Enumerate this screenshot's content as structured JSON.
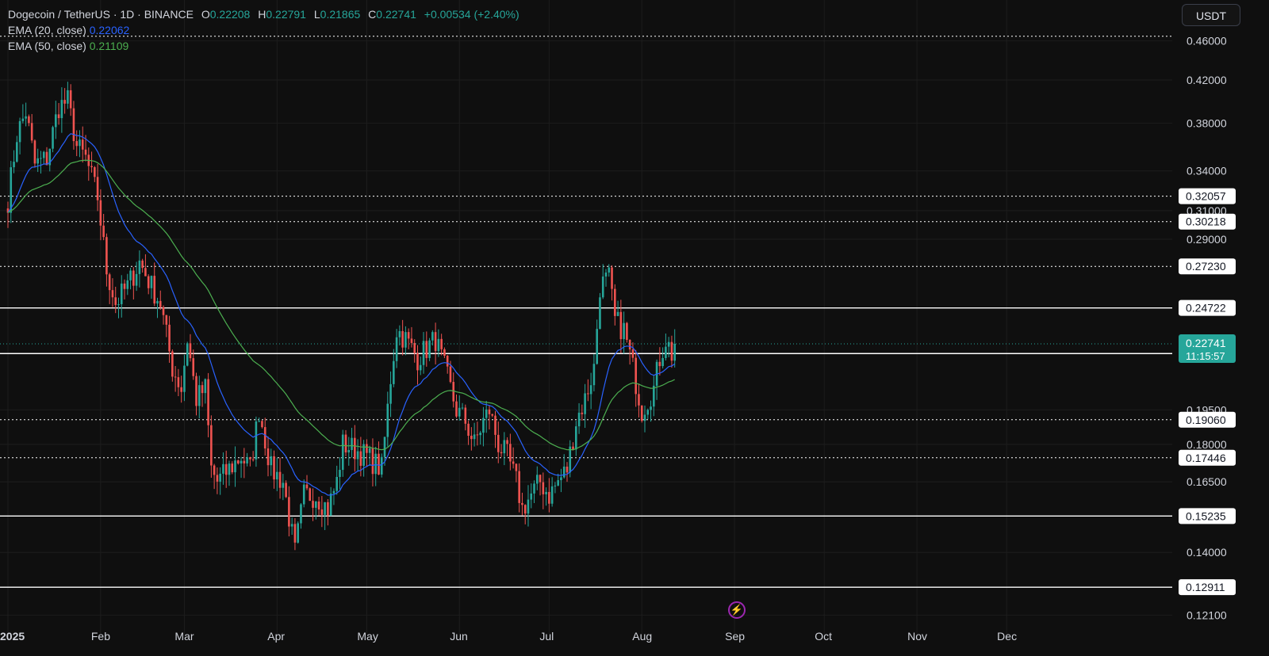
{
  "header": {
    "symbol": "Dogecoin / TetherUS · 1D · BINANCE",
    "o_label": "O",
    "o_value": "0.22208",
    "h_label": "H",
    "h_value": "0.22791",
    "l_label": "L",
    "l_value": "0.21865",
    "c_label": "C",
    "c_value": "0.22741",
    "change": "+0.00534 (+2.40%)"
  },
  "indicators": [
    {
      "label": "EMA (20, close)",
      "value": "0.22062",
      "color": "#2962ff"
    },
    {
      "label": "EMA (50, close)",
      "value": "0.21109",
      "color": "#4caf50"
    }
  ],
  "currency_button": "USDT",
  "colors": {
    "up": "#26a69a",
    "down": "#ef5350",
    "ema20": "#2962ff",
    "ema50": "#4caf50",
    "price_badge": "#26a69a",
    "background": "#0f0f0f"
  },
  "chart_data": {
    "type": "candlestick",
    "x_axis_labels": [
      "2025",
      "Feb",
      "Mar",
      "Apr",
      "May",
      "Jun",
      "Jul",
      "Aug",
      "Sep",
      "Oct",
      "Nov",
      "Dec"
    ],
    "x_axis_dates": [
      "2025-01-01",
      "2025-02-01",
      "2025-03-01",
      "2025-04-01",
      "2025-05-01",
      "2025-06-01",
      "2025-07-01",
      "2025-08-01",
      "2025-09-01",
      "2025-10-01",
      "2025-11-01",
      "2025-12-01"
    ],
    "y_axis_ticks": [
      "0.46000",
      "0.42000",
      "0.38000",
      "0.34000",
      "0.31000",
      "0.29000",
      "0.19500",
      "0.18000",
      "0.16500",
      "0.14000",
      "0.12100"
    ],
    "y_axis_tick_values": [
      0.46,
      0.42,
      0.38,
      0.34,
      0.31,
      0.29,
      0.195,
      0.18,
      0.165,
      0.14,
      0.121
    ],
    "ylim": [
      0.118,
      0.47
    ],
    "scale": "log",
    "horizontal_levels": [
      {
        "label": "0.32057",
        "value": 0.32057,
        "style": "dotted"
      },
      {
        "label": "0.30218",
        "value": 0.30218,
        "style": "dotted"
      },
      {
        "label": "0.27230",
        "value": 0.2723,
        "style": "dotted"
      },
      {
        "label": "0.24722",
        "value": 0.24722,
        "style": "solid"
      },
      {
        "label": "0.22232",
        "value": 0.22232,
        "style": "solid"
      },
      {
        "label": "0.19060",
        "value": 0.1906,
        "style": "dotted"
      },
      {
        "label": "0.17446",
        "value": 0.17446,
        "style": "dotted"
      },
      {
        "label": "0.15235",
        "value": 0.15235,
        "style": "solid"
      },
      {
        "label": "0.12911",
        "value": 0.12911,
        "style": "solid"
      }
    ],
    "top_level": {
      "value": 0.465,
      "style": "dotted"
    },
    "current_price": {
      "label": "0.22741",
      "value": 0.22741,
      "countdown": "11:15:57"
    },
    "close_anchors": [
      [
        "2025-01-01",
        0.318
      ],
      [
        "2025-01-04",
        0.37
      ],
      [
        "2025-01-07",
        0.39
      ],
      [
        "2025-01-10",
        0.345
      ],
      [
        "2025-01-14",
        0.35
      ],
      [
        "2025-01-18",
        0.395
      ],
      [
        "2025-01-21",
        0.4
      ],
      [
        "2025-01-24",
        0.36
      ],
      [
        "2025-01-27",
        0.35
      ],
      [
        "2025-01-31",
        0.32
      ],
      [
        "2025-02-03",
        0.27
      ],
      [
        "2025-02-06",
        0.25
      ],
      [
        "2025-02-10",
        0.26
      ],
      [
        "2025-02-14",
        0.275
      ],
      [
        "2025-02-18",
        0.26
      ],
      [
        "2025-02-21",
        0.25
      ],
      [
        "2025-02-25",
        0.215
      ],
      [
        "2025-02-28",
        0.205
      ],
      [
        "2025-03-02",
        0.23
      ],
      [
        "2025-03-05",
        0.2
      ],
      [
        "2025-03-08",
        0.205
      ],
      [
        "2025-03-10",
        0.17
      ],
      [
        "2025-03-12",
        0.165
      ],
      [
        "2025-03-16",
        0.17
      ],
      [
        "2025-03-20",
        0.175
      ],
      [
        "2025-03-23",
        0.17
      ],
      [
        "2025-03-26",
        0.195
      ],
      [
        "2025-03-30",
        0.17
      ],
      [
        "2025-04-03",
        0.165
      ],
      [
        "2025-04-07",
        0.14
      ],
      [
        "2025-04-10",
        0.16
      ],
      [
        "2025-04-14",
        0.16
      ],
      [
        "2025-04-18",
        0.155
      ],
      [
        "2025-04-21",
        0.165
      ],
      [
        "2025-04-23",
        0.18
      ],
      [
        "2025-04-27",
        0.178
      ],
      [
        "2025-05-01",
        0.175
      ],
      [
        "2025-05-06",
        0.17
      ],
      [
        "2025-05-09",
        0.21
      ],
      [
        "2025-05-11",
        0.235
      ],
      [
        "2025-05-14",
        0.23
      ],
      [
        "2025-05-18",
        0.22
      ],
      [
        "2025-05-21",
        0.225
      ],
      [
        "2025-05-24",
        0.23
      ],
      [
        "2025-05-28",
        0.21
      ],
      [
        "2025-05-31",
        0.195
      ],
      [
        "2025-06-03",
        0.19
      ],
      [
        "2025-06-06",
        0.18
      ],
      [
        "2025-06-09",
        0.19
      ],
      [
        "2025-06-11",
        0.195
      ],
      [
        "2025-06-14",
        0.18
      ],
      [
        "2025-06-17",
        0.175
      ],
      [
        "2025-06-20",
        0.165
      ],
      [
        "2025-06-22",
        0.155
      ],
      [
        "2025-06-25",
        0.16
      ],
      [
        "2025-06-28",
        0.165
      ],
      [
        "2025-07-01",
        0.16
      ],
      [
        "2025-07-04",
        0.165
      ],
      [
        "2025-07-07",
        0.17
      ],
      [
        "2025-07-10",
        0.19
      ],
      [
        "2025-07-13",
        0.2
      ],
      [
        "2025-07-16",
        0.215
      ],
      [
        "2025-07-18",
        0.26
      ],
      [
        "2025-07-21",
        0.265
      ],
      [
        "2025-07-23",
        0.24
      ],
      [
        "2025-07-26",
        0.235
      ],
      [
        "2025-07-29",
        0.215
      ],
      [
        "2025-08-01",
        0.195
      ],
      [
        "2025-08-03",
        0.2
      ],
      [
        "2025-08-05",
        0.205
      ],
      [
        "2025-08-07",
        0.22
      ],
      [
        "2025-08-09",
        0.23
      ],
      [
        "2025-08-11",
        0.22208
      ],
      [
        "2025-08-12",
        0.22741
      ]
    ]
  }
}
